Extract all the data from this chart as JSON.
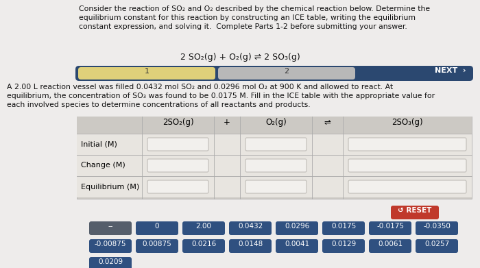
{
  "title_text": "Consider the reaction of SO₂ and O₂ described by the chemical reaction below. Determine the\nequilibrium constant for this reaction by constructing an ICE table, writing the equilibrium\nconstant expression, and solving it.  Complete Parts 1-2 before submitting your answer.",
  "equation": "2 SO₂(g) + O₂(g) ⇌ 2 SO₃(g)",
  "bg_color": "#eeeceb",
  "tab_bar_bg": "#2b4870",
  "tab1_bg": "#dfd07a",
  "tab2_bg": "#b8b8b8",
  "next_text": "NEXT  ›",
  "body_text": "A 2.00 L reaction vessel was filled 0.0432 mol SO₂ and 0.0296 mol O₂ at 900 K and allowed to react. At\nequilibrium, the concentration of SO₃ was found to be 0.0175 M. Fill in the ICE table with the appropriate value for\neach involved species to determine concentrations of all reactants and products.",
  "col_headers": [
    "2SO₂(g)",
    "+",
    "O₂(g)",
    "⇌",
    "2SO₃(g)"
  ],
  "row_labels": [
    "Initial (M)",
    "Change (M)",
    "Equilibrium (M)"
  ],
  "reset_bg": "#c0392b",
  "reset_text": "↺ RESET",
  "button_rows": [
    [
      "--",
      "0",
      "2.00",
      "0.0432",
      "0.0296",
      "0.0175",
      "-0.0175",
      "-0.0350"
    ],
    [
      "-0.00875",
      "0.00875",
      "0.0216",
      "0.0148",
      "0.0041",
      "0.0129",
      "0.0061",
      "0.0257"
    ],
    [
      "0.0209"
    ]
  ],
  "dash_btn_bg": "#555e6b",
  "button_bg": "#2f5080",
  "button_text_color": "#ffffff"
}
